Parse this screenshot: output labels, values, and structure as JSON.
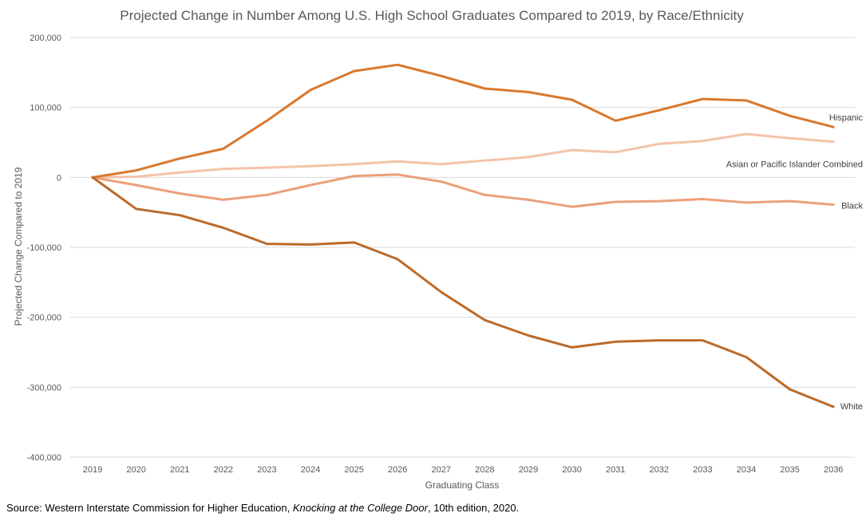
{
  "source": {
    "prefix": "Source: Western Interstate Commission for Higher Education, ",
    "publication": "Knocking at the College Door",
    "suffix": ", 10th edition, 2020."
  },
  "chart_data": {
    "type": "line",
    "title": "Projected Change in Number Among U.S. High School Graduates Compared to 2019, by Race/Ethnicity",
    "xlabel": "Graduating Class",
    "ylabel": "Projected Change Compared to 2019",
    "ylim": [
      -400000,
      200000
    ],
    "yticks": [
      200000,
      100000,
      0,
      -100000,
      -200000,
      -300000,
      -400000
    ],
    "ytick_labels": [
      "200,000",
      "100,000",
      "0",
      "-100,000",
      "-200,000",
      "-300,000",
      "-400,000"
    ],
    "grid": true,
    "legend": "direct labels at line ends",
    "categories": [
      "2019",
      "2020",
      "2021",
      "2022",
      "2023",
      "2024",
      "2025",
      "2026",
      "2027",
      "2028",
      "2029",
      "2030",
      "2031",
      "2032",
      "2033",
      "2034",
      "2035",
      "2036"
    ],
    "series": [
      {
        "name": "Hispanic",
        "color": "#D9782D",
        "values": [
          0,
          10000,
          27000,
          41000,
          81000,
          125000,
          152000,
          161000,
          145000,
          127000,
          122000,
          111000,
          81000,
          96000,
          112000,
          110000,
          88000,
          72000
        ]
      },
      {
        "name": "Asian or Pacific Islander Combined",
        "color": "#F4C3A8",
        "values": [
          0,
          1000,
          7000,
          12000,
          14000,
          16000,
          19000,
          23000,
          19000,
          24000,
          29000,
          39000,
          36000,
          48000,
          52000,
          62000,
          56000,
          51000
        ]
      },
      {
        "name": "Black",
        "color": "#EBA07A",
        "values": [
          0,
          -11000,
          -23000,
          -32000,
          -25000,
          -11000,
          2000,
          4000,
          -6000,
          -25000,
          -32000,
          -42000,
          -35000,
          -34000,
          -31000,
          -36000,
          -34000,
          -39000
        ]
      },
      {
        "name": "White",
        "color": "#BB6A2A",
        "values": [
          0,
          -45000,
          -54000,
          -72000,
          -95000,
          -96000,
          -93000,
          -117000,
          -164000,
          -204000,
          -226000,
          -243000,
          -235000,
          -233000,
          -233000,
          -257000,
          -303000,
          -328000
        ]
      }
    ]
  }
}
